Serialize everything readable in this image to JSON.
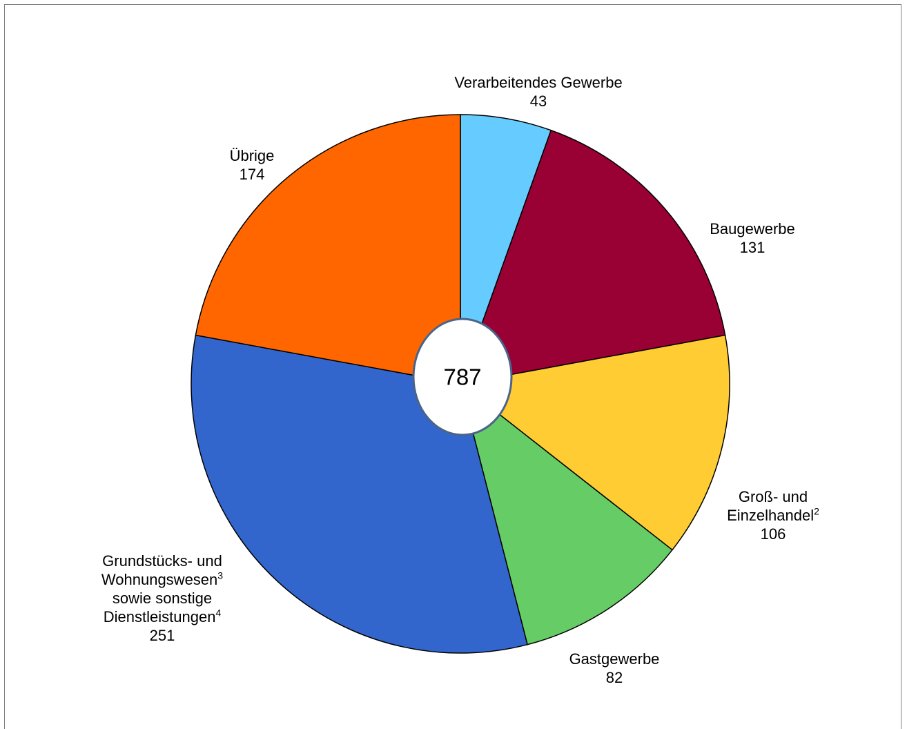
{
  "chart_data": {
    "type": "pie",
    "total": "787",
    "slices": [
      {
        "id": "verarbeitendes",
        "label_lines": [
          "Verarbeitendes Gewerbe"
        ],
        "value": 43,
        "color": "#66CCFF"
      },
      {
        "id": "baugewerbe",
        "label_lines": [
          "Baugewerbe"
        ],
        "value": 131,
        "color": "#990033"
      },
      {
        "id": "handel",
        "label_lines": [
          "Groß- und",
          "Einzelhandel"
        ],
        "sups": [
          "",
          "2"
        ],
        "value": 106,
        "color": "#FFCC33"
      },
      {
        "id": "gastgewerbe",
        "label_lines": [
          "Gastgewerbe"
        ],
        "value": 82,
        "color": "#66CC66"
      },
      {
        "id": "grundstuecks",
        "label_lines": [
          "Grundstücks- und",
          "Wohnungswesen",
          "sowie sonstige",
          "Dienstleistungen"
        ],
        "sups": [
          "",
          "3",
          "",
          "4"
        ],
        "value": 251,
        "color": "#3366CC"
      },
      {
        "id": "uebrige",
        "label_lines": [
          "Übrige"
        ],
        "value": 174,
        "color": "#FF6600"
      }
    ],
    "legend": "none"
  }
}
